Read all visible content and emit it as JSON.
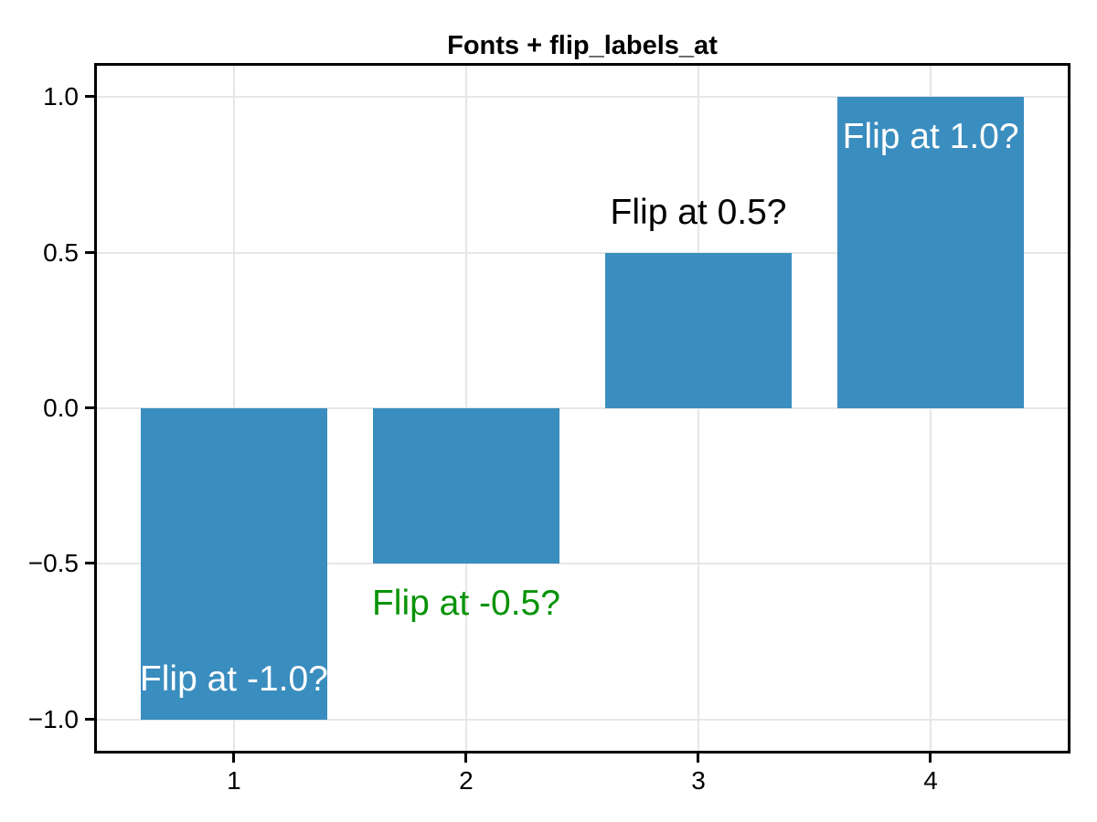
{
  "chart_data": {
    "type": "bar",
    "title": "Fonts + flip_labels_at",
    "x": [
      1,
      2,
      3,
      4
    ],
    "values": [
      -1.0,
      -0.5,
      0.5,
      1.0
    ],
    "bar_width": 0.8,
    "bar_color": "#3a8dbf",
    "xlim": [
      0.41,
      4.59
    ],
    "ylim": [
      -1.1,
      1.1
    ],
    "x_tick_values": [
      1,
      2,
      3,
      4
    ],
    "x_tick_labels": [
      "1",
      "2",
      "3",
      "4"
    ],
    "y_tick_values": [
      1.0,
      0.5,
      0.0,
      -0.5,
      -1.0
    ],
    "y_tick_labels": [
      "1.0",
      "0.5",
      "0.0",
      "−0.5",
      "−1.0"
    ],
    "grid": true,
    "grid_color": "#e6e6e6",
    "axis_color": "#000000",
    "legend": "none",
    "bar_labels": [
      {
        "text": "Flip at -1.0?",
        "color": "#ffffff",
        "placement": "inside"
      },
      {
        "text": "Flip at -0.5?",
        "color": "#079307",
        "placement": "outside"
      },
      {
        "text": "Flip at 0.5?",
        "color": "#000000",
        "placement": "outside"
      },
      {
        "text": "Flip at 1.0?",
        "color": "#ffffff",
        "placement": "inside"
      }
    ]
  }
}
